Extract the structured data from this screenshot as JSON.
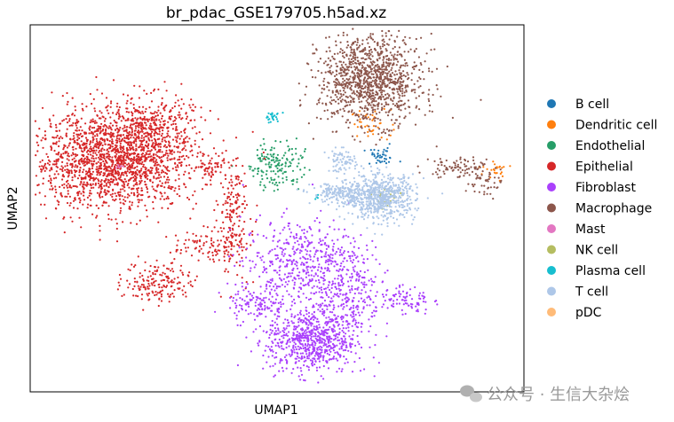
{
  "chart_data": {
    "type": "scatter",
    "title": "br_pdac_GSE179705.h5ad.xz",
    "xlabel": "UMAP1",
    "ylabel": "UMAP2",
    "x_ticks_shown": false,
    "y_ticks_shown": false,
    "grid": false,
    "legend_placement": "right-outside",
    "xlim": [
      0,
      100
    ],
    "ylim": [
      0,
      100
    ],
    "series": [
      {
        "name": "B cell",
        "color": "#1f77b4",
        "clusters": [
          {
            "cx": 71,
            "cy": 64,
            "sx": 1.8,
            "sy": 1.2,
            "n": 40
          }
        ]
      },
      {
        "name": "Dendritic cell",
        "color": "#ff7f0e",
        "clusters": [
          {
            "cx": 69,
            "cy": 73,
            "sx": 2.0,
            "sy": 2.0,
            "n": 40
          },
          {
            "cx": 94,
            "cy": 60,
            "sx": 1.2,
            "sy": 1.3,
            "n": 25
          }
        ]
      },
      {
        "name": "Endothelial",
        "color": "#279e68",
        "clusters": [
          {
            "cx": 50,
            "cy": 62,
            "sx": 2.8,
            "sy": 3.5,
            "n": 160
          }
        ]
      },
      {
        "name": "Epithelial",
        "color": "#d62728",
        "clusters": [
          {
            "cx": 17,
            "cy": 63,
            "sx": 8.5,
            "sy": 6.5,
            "n": 1800
          },
          {
            "cx": 24,
            "cy": 73,
            "sx": 4.5,
            "sy": 4.0,
            "n": 280
          },
          {
            "cx": 37,
            "cy": 61,
            "sx": 1.4,
            "sy": 1.1,
            "n": 40
          },
          {
            "cx": 41,
            "cy": 48,
            "sx": 1.8,
            "sy": 8.0,
            "n": 170
          },
          {
            "cx": 36,
            "cy": 40,
            "sx": 3.5,
            "sy": 2.0,
            "n": 100
          },
          {
            "cx": 26,
            "cy": 30,
            "sx": 3.5,
            "sy": 3.0,
            "n": 170
          }
        ]
      },
      {
        "name": "Fibroblast",
        "color": "#aa40fc",
        "clusters": [
          {
            "cx": 57,
            "cy": 14,
            "sx": 4.5,
            "sy": 4.5,
            "n": 700
          },
          {
            "cx": 55,
            "cy": 35,
            "sx": 6.0,
            "sy": 6.0,
            "n": 500
          },
          {
            "cx": 65,
            "cy": 27,
            "sx": 3.0,
            "sy": 7.0,
            "n": 240
          },
          {
            "cx": 76,
            "cy": 25,
            "sx": 2.5,
            "sy": 2.0,
            "n": 80
          },
          {
            "cx": 46,
            "cy": 24,
            "sx": 3.0,
            "sy": 2.5,
            "n": 120
          }
        ]
      },
      {
        "name": "Macrophage",
        "color": "#8c564b",
        "clusters": [
          {
            "cx": 69,
            "cy": 85,
            "sx": 5.2,
            "sy": 6.0,
            "n": 1100
          },
          {
            "cx": 87,
            "cy": 61,
            "sx": 3.5,
            "sy": 1.5,
            "n": 90
          },
          {
            "cx": 92,
            "cy": 57,
            "sx": 1.8,
            "sy": 2.0,
            "n": 40
          }
        ]
      },
      {
        "name": "Mast",
        "color": "#e377c2",
        "clusters": [
          {
            "cx": 18,
            "cy": 61,
            "sx": 0.5,
            "sy": 0.5,
            "n": 6
          }
        ]
      },
      {
        "name": "NK cell",
        "color": "#b5bd61",
        "clusters": [
          {
            "cx": 72,
            "cy": 53,
            "sx": 1.5,
            "sy": 1.5,
            "n": 25
          }
        ]
      },
      {
        "name": "Plasma cell",
        "color": "#17becf",
        "clusters": [
          {
            "cx": 49,
            "cy": 75,
            "sx": 0.9,
            "sy": 0.8,
            "n": 25
          },
          {
            "cx": 58,
            "cy": 53,
            "sx": 0.4,
            "sy": 0.3,
            "n": 5
          }
        ]
      },
      {
        "name": "T cell",
        "color": "#aec7e8",
        "clusters": [
          {
            "cx": 71,
            "cy": 53,
            "sx": 3.5,
            "sy": 3.0,
            "n": 650
          },
          {
            "cx": 63,
            "cy": 54,
            "sx": 3.0,
            "sy": 1.5,
            "n": 180
          },
          {
            "cx": 63,
            "cy": 63,
            "sx": 1.5,
            "sy": 1.5,
            "n": 70
          }
        ]
      },
      {
        "name": "pDC",
        "color": "#ffbb78",
        "clusters": []
      }
    ]
  },
  "watermark": "公众号 · 生信大杂烩"
}
